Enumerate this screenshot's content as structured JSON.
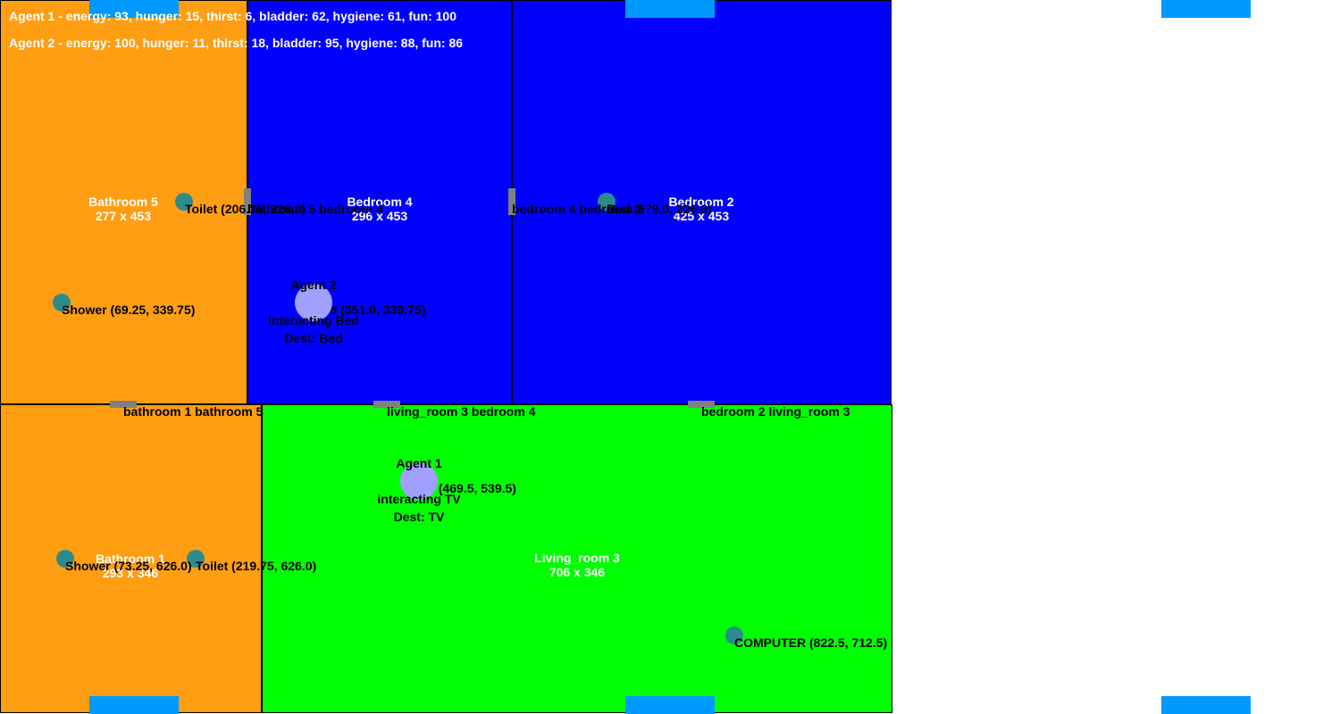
{
  "hud": {
    "agent1_stats": "Agent 1 - energy: 93, hunger: 15, thirst: 6, bladder: 62, hygiene: 61, fun: 100",
    "agent2_stats": "Agent 2 - energy: 100, hunger: 11, thirst: 18, bladder: 95, hygiene: 88, fun: 86"
  },
  "rooms": {
    "bathroom5": {
      "name": "Bathroom 5",
      "size": "277 x 453",
      "color": "#ff9e12"
    },
    "bedroom4": {
      "name": "Bedroom 4",
      "size": "296 x 453",
      "color": "#0000ff"
    },
    "bedroom2": {
      "name": "Bedroom 2",
      "size": "425 x 453",
      "color": "#0000ff"
    },
    "bathroom1": {
      "name": "Bathroom 1",
      "size": "293 x 346",
      "color": "#ff9e12"
    },
    "living_room3": {
      "name": "Living_room 3",
      "size": "706 x 346",
      "color": "#00ff00"
    }
  },
  "doors": {
    "bathroom5_bedroom4": "bathroom 5 bedroom 4",
    "bedroom4_bedroom2": "bedroom 4 bedroom 2",
    "bathroom1_bathroom5": "bathroom 1 bathroom 5",
    "livingroom3_bedroom4": "living_room 3 bedroom 4",
    "bedroom2_livingroom3": "bedroom 2 living_room 3"
  },
  "objects": {
    "toilet_b5": "Toilet (206.75, 226.0)",
    "shower_b5": "Shower (69.25, 339.75)",
    "bed_b4": "Bed (351.0, 339.75)",
    "bed_b2": "Bed (679.0, 226.0)",
    "shower_b1": "Shower (73.25, 626.0)",
    "toilet_b1": "Toilet (219.75, 626.0)",
    "tv_lr": "TV (469.5, 539.5)",
    "computer_lr": "COMPUTER (822.5, 712.5)"
  },
  "agents": {
    "agent1": {
      "name": "Agent 1",
      "status": "interacting TV",
      "dest": "Dest: TV"
    },
    "agent2": {
      "name": "Agent 2",
      "status": "interacting Bed",
      "dest": "Dest: Bed"
    }
  },
  "colors": {
    "bathroom": "#ff9e12",
    "bedroom": "#0000ff",
    "living_room": "#00ff00",
    "window_tab": "#0099ff",
    "door": "#808080",
    "object": "#2e8b8b",
    "agent": "#a0a0ff"
  }
}
